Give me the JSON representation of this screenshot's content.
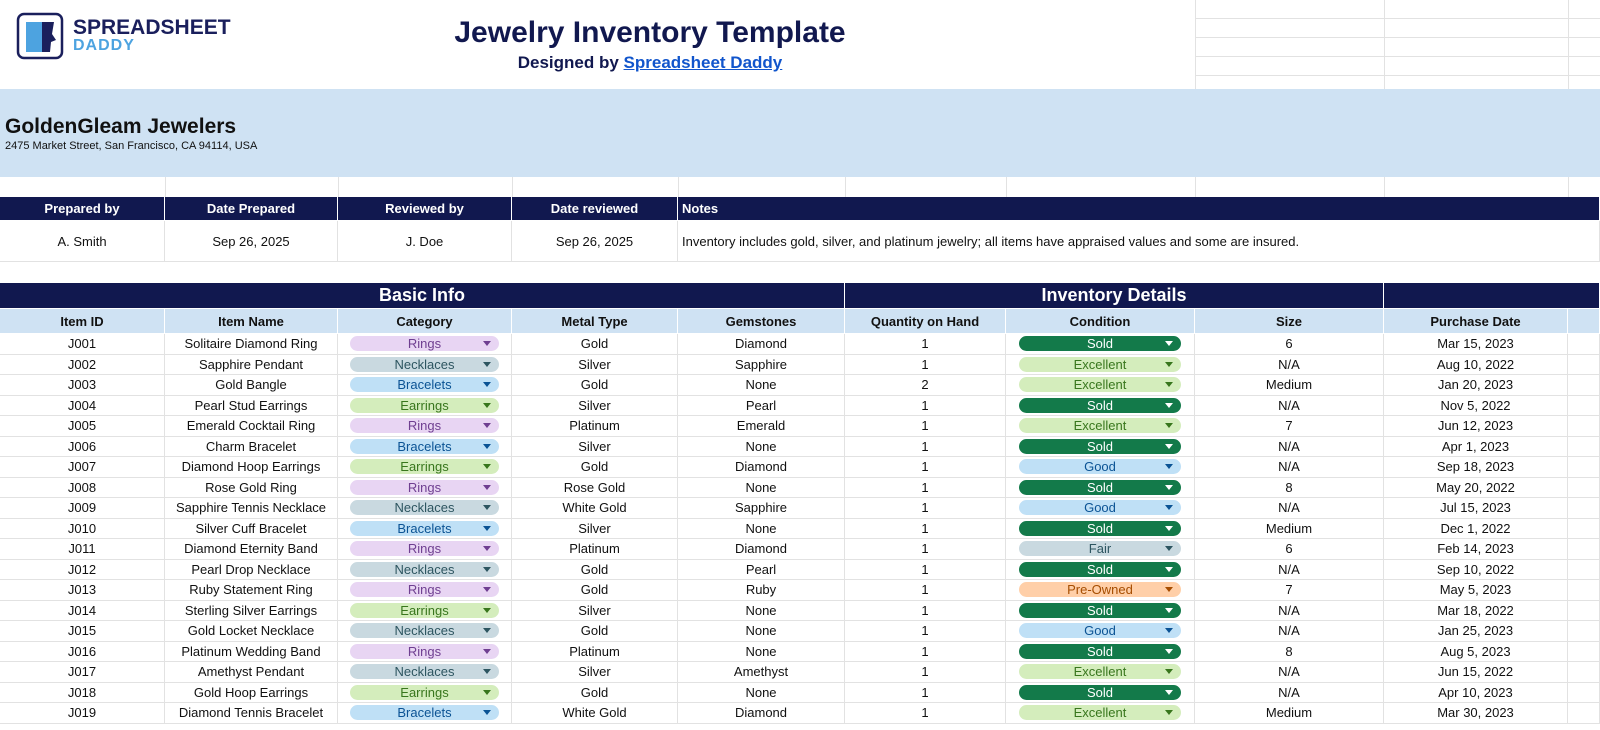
{
  "header": {
    "logo_top": "SPREADSHEET",
    "logo_bottom": "DADDY",
    "title": "Jewelry Inventory Template",
    "subtitle_prefix": "Designed by",
    "subtitle_link": "Spreadsheet Daddy"
  },
  "company": {
    "name": "GoldenGleam Jewelers",
    "address": "2475 Market Street, San Francisco, CA 94114, USA"
  },
  "prep_table": {
    "headers": [
      "Prepared by",
      "Date Prepared",
      "Reviewed by",
      "Date reviewed",
      "Notes"
    ],
    "values": [
      "A. Smith",
      "Sep 26, 2025",
      "J. Doe",
      "Sep 26, 2025",
      "Inventory includes gold, silver, and platinum jewelry; all items have appraised values and some are insured."
    ]
  },
  "inventory": {
    "groups": [
      "Basic Info",
      "Inventory Details"
    ],
    "columns": [
      "Item ID",
      "Item Name",
      "Category",
      "Metal Type",
      "Gemstones",
      "Quantity on Hand",
      "Condition",
      "Size",
      "Purchase Date"
    ],
    "category_colors": {
      "Rings": [
        "#e8d5f3",
        "#6f3f91"
      ],
      "Necklaces": [
        "#c9d9e0",
        "#2d5560"
      ],
      "Bracelets": [
        "#bfe0f6",
        "#0b5394"
      ],
      "Earrings": [
        "#d4edbc",
        "#38761d"
      ]
    },
    "condition_colors": {
      "Sold": [
        "#137a4a",
        "#ffffff"
      ],
      "Excellent": [
        "#d4edbc",
        "#38761d"
      ],
      "Good": [
        "#bfe0f6",
        "#0b5394"
      ],
      "Fair": [
        "#c9d9e0",
        "#2d5560"
      ],
      "Pre-Owned": [
        "#ffcfa8",
        "#a64d00"
      ]
    },
    "rows": [
      [
        "J001",
        "Solitaire Diamond Ring",
        "Rings",
        "Gold",
        "Diamond",
        1,
        "Sold",
        "6",
        "Mar 15, 2023"
      ],
      [
        "J002",
        "Sapphire Pendant",
        "Necklaces",
        "Silver",
        "Sapphire",
        1,
        "Excellent",
        "N/A",
        "Aug 10, 2022"
      ],
      [
        "J003",
        "Gold Bangle",
        "Bracelets",
        "Gold",
        "None",
        2,
        "Excellent",
        "Medium",
        "Jan 20, 2023"
      ],
      [
        "J004",
        "Pearl Stud Earrings",
        "Earrings",
        "Silver",
        "Pearl",
        1,
        "Sold",
        "N/A",
        "Nov 5, 2022"
      ],
      [
        "J005",
        "Emerald Cocktail Ring",
        "Rings",
        "Platinum",
        "Emerald",
        1,
        "Excellent",
        "7",
        "Jun 12, 2023"
      ],
      [
        "J006",
        "Charm Bracelet",
        "Bracelets",
        "Silver",
        "None",
        1,
        "Sold",
        "N/A",
        "Apr 1, 2023"
      ],
      [
        "J007",
        "Diamond Hoop Earrings",
        "Earrings",
        "Gold",
        "Diamond",
        1,
        "Good",
        "N/A",
        "Sep 18, 2023"
      ],
      [
        "J008",
        "Rose Gold Ring",
        "Rings",
        "Rose Gold",
        "None",
        1,
        "Sold",
        "8",
        "May 20, 2022"
      ],
      [
        "J009",
        "Sapphire Tennis Necklace",
        "Necklaces",
        "White Gold",
        "Sapphire",
        1,
        "Good",
        "N/A",
        "Jul 15, 2023"
      ],
      [
        "J010",
        "Silver Cuff Bracelet",
        "Bracelets",
        "Silver",
        "None",
        1,
        "Sold",
        "Medium",
        "Dec 1, 2022"
      ],
      [
        "J011",
        "Diamond Eternity Band",
        "Rings",
        "Platinum",
        "Diamond",
        1,
        "Fair",
        "6",
        "Feb 14, 2023"
      ],
      [
        "J012",
        "Pearl Drop Necklace",
        "Necklaces",
        "Gold",
        "Pearl",
        1,
        "Sold",
        "N/A",
        "Sep 10, 2022"
      ],
      [
        "J013",
        "Ruby Statement Ring",
        "Rings",
        "Gold",
        "Ruby",
        1,
        "Pre-Owned",
        "7",
        "May 5, 2023"
      ],
      [
        "J014",
        "Sterling Silver Earrings",
        "Earrings",
        "Silver",
        "None",
        1,
        "Sold",
        "N/A",
        "Mar 18, 2022"
      ],
      [
        "J015",
        "Gold Locket Necklace",
        "Necklaces",
        "Gold",
        "None",
        1,
        "Good",
        "N/A",
        "Jan 25, 2023"
      ],
      [
        "J016",
        "Platinum Wedding Band",
        "Rings",
        "Platinum",
        "None",
        1,
        "Sold",
        "8",
        "Aug 5, 2023"
      ],
      [
        "J017",
        "Amethyst Pendant",
        "Necklaces",
        "Silver",
        "Amethyst",
        1,
        "Excellent",
        "N/A",
        "Jun 15, 2022"
      ],
      [
        "J018",
        "Gold Hoop Earrings",
        "Earrings",
        "Gold",
        "None",
        1,
        "Sold",
        "N/A",
        "Apr 10, 2023"
      ],
      [
        "J019",
        "Diamond Tennis Bracelet",
        "Bracelets",
        "White Gold",
        "Diamond",
        1,
        "Excellent",
        "Medium",
        "Mar 30, 2023"
      ]
    ]
  }
}
